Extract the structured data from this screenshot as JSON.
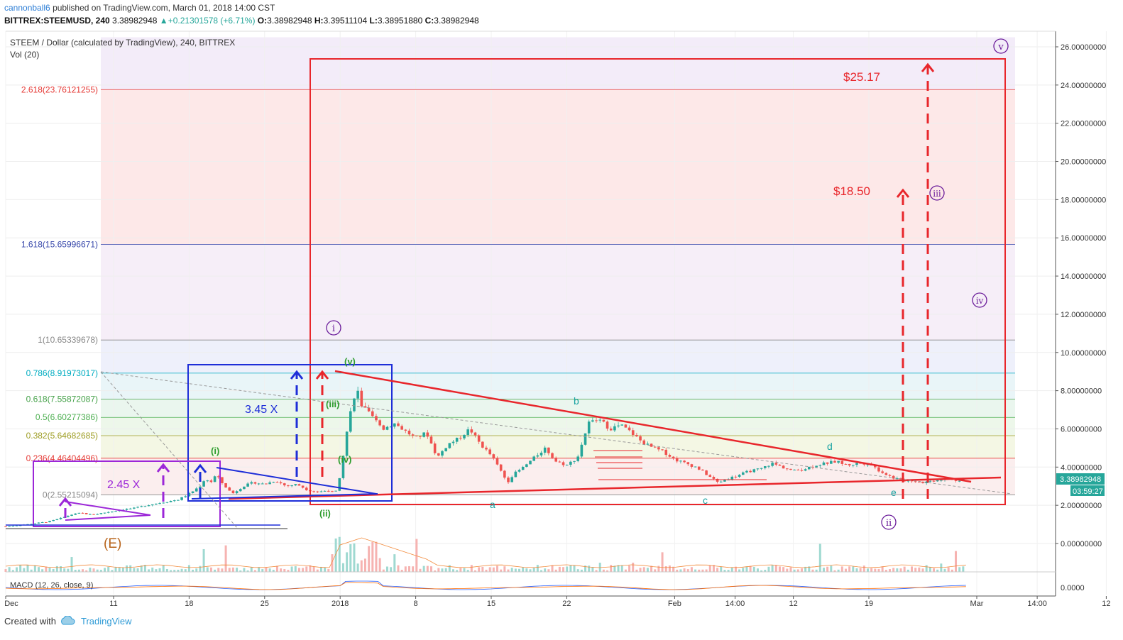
{
  "header": {
    "user": "cannonball6",
    "published": "published on TradingView.com, March 01, 2018 14:00 CST",
    "symbol": "BITTREX:STEEMUSD, 240",
    "last": "3.38982948",
    "change": "+0.21301578 (+6.71%)",
    "open_label": "O:",
    "open": "3.38982948",
    "high_label": "H:",
    "high": "3.39511104",
    "low_label": "L:",
    "low": "3.38951880",
    "close_label": "C:",
    "close": "3.38982948"
  },
  "chart_data": {
    "type": "candlestick",
    "title": "STEEM / Dollar (calculated by TradingView), 240, BITTREX",
    "volume_label": "Vol (20)",
    "macd_label": "MACD (12, 26, close, 9)",
    "macd_tick": "0.0000",
    "ylim": [
      -1.2,
      26.8
    ],
    "y_ticks": [
      "26.00000000",
      "24.00000000",
      "22.00000000",
      "20.00000000",
      "18.00000000",
      "16.00000000",
      "14.00000000",
      "12.00000000",
      "10.00000000",
      "8.00000000",
      "6.00000000",
      "4.00000000",
      "2.00000000",
      "0.00000000"
    ],
    "y_tick_values": [
      26,
      24,
      22,
      20,
      18,
      16,
      14,
      12,
      10,
      8,
      6,
      4,
      2,
      0
    ],
    "x_labels": [
      {
        "text": "Dec",
        "day": 0
      },
      {
        "text": "11",
        "day": 10
      },
      {
        "text": "18",
        "day": 17
      },
      {
        "text": "25",
        "day": 24
      },
      {
        "text": "2018",
        "day": 31
      },
      {
        "text": "8",
        "day": 38
      },
      {
        "text": "15",
        "day": 45
      },
      {
        "text": "22",
        "day": 52
      },
      {
        "text": "Feb",
        "day": 62
      },
      {
        "text": "14:00",
        "day": 67.6
      },
      {
        "text": "12",
        "day": 73
      },
      {
        "text": "19",
        "day": 80
      },
      {
        "text": "Mar",
        "day": 90
      },
      {
        "text": "14:00",
        "day": 95.6
      },
      {
        "text": "12",
        "day": 102
      }
    ],
    "last_price_tag": "3.38982948",
    "countdown_tag": "03:59:27",
    "price_path": [
      [
        0,
        0.9
      ],
      [
        2,
        1.0
      ],
      [
        4,
        1.15
      ],
      [
        5,
        1.3
      ],
      [
        6,
        1.5
      ],
      [
        7,
        1.6
      ],
      [
        8,
        1.5
      ],
      [
        9,
        1.6
      ],
      [
        10,
        1.7
      ],
      [
        11,
        1.8
      ],
      [
        12,
        1.85
      ],
      [
        13,
        2.0
      ],
      [
        14,
        2.1
      ],
      [
        15,
        2.2
      ],
      [
        16,
        2.3
      ],
      [
        17,
        2.6
      ],
      [
        18,
        3.0
      ],
      [
        18.5,
        3.4
      ],
      [
        19,
        3.2
      ],
      [
        19.5,
        3.6
      ],
      [
        20,
        3.2
      ],
      [
        20.5,
        2.9
      ],
      [
        21,
        2.6
      ],
      [
        22,
        3.0
      ],
      [
        23,
        3.2
      ],
      [
        24,
        3.1
      ],
      [
        25,
        3.3
      ],
      [
        26,
        3.0
      ],
      [
        27,
        3.1
      ],
      [
        28,
        2.8
      ],
      [
        29,
        2.7
      ],
      [
        30,
        2.8
      ],
      [
        30.5,
        2.6
      ],
      [
        31,
        3.6
      ],
      [
        31.5,
        5.5
      ],
      [
        32,
        7.0
      ],
      [
        32.5,
        8.2
      ],
      [
        33,
        7.2
      ],
      [
        34,
        6.6
      ],
      [
        35,
        6.0
      ],
      [
        36,
        6.3
      ],
      [
        37,
        5.9
      ],
      [
        38,
        5.5
      ],
      [
        39,
        5.8
      ],
      [
        40,
        4.5
      ],
      [
        41,
        5.2
      ],
      [
        42,
        5.5
      ],
      [
        43,
        6.0
      ],
      [
        44,
        5.2
      ],
      [
        45,
        4.6
      ],
      [
        46,
        3.7
      ],
      [
        46.5,
        3.2
      ],
      [
        47,
        3.6
      ],
      [
        48,
        4.0
      ],
      [
        49,
        4.5
      ],
      [
        50,
        5.0
      ],
      [
        51,
        4.3
      ],
      [
        52,
        4.1
      ],
      [
        53,
        4.5
      ],
      [
        54,
        6.3
      ],
      [
        55,
        6.5
      ],
      [
        56,
        6.0
      ],
      [
        57,
        6.2
      ],
      [
        58,
        5.8
      ],
      [
        59,
        5.3
      ],
      [
        60,
        5.0
      ],
      [
        61,
        4.8
      ],
      [
        62,
        4.4
      ],
      [
        63,
        4.2
      ],
      [
        64,
        4.0
      ],
      [
        65,
        3.6
      ],
      [
        66,
        3.2
      ],
      [
        67,
        3.4
      ],
      [
        68,
        3.6
      ],
      [
        69,
        3.8
      ],
      [
        70,
        3.9
      ],
      [
        71,
        4.2
      ],
      [
        72,
        4.0
      ],
      [
        73,
        3.8
      ],
      [
        74,
        3.9
      ],
      [
        75,
        4.1
      ],
      [
        76,
        4.2
      ],
      [
        77,
        4.3
      ],
      [
        78,
        4.1
      ],
      [
        79,
        4.2
      ],
      [
        80,
        4.2
      ],
      [
        81,
        3.8
      ],
      [
        82,
        3.5
      ],
      [
        83,
        3.3
      ],
      [
        84,
        3.3
      ],
      [
        85,
        3.2
      ],
      [
        86,
        3.3
      ],
      [
        87,
        3.4
      ],
      [
        88,
        3.3
      ],
      [
        89,
        3.39
      ]
    ],
    "fib_levels": [
      {
        "label": "2.618(23.76121255)",
        "value": 23.76121255,
        "color": "#e53935"
      },
      {
        "label": "1.618(15.65996671)",
        "value": 15.65996671,
        "color": "#3949ab"
      },
      {
        "label": "1(10.65339678)",
        "value": 10.65339678,
        "color": "#888888"
      },
      {
        "label": "0.786(8.91973017)",
        "value": 8.91973017,
        "color": "#00acc1"
      },
      {
        "label": "0.618(7.55872087)",
        "value": 7.55872087,
        "color": "#43a047"
      },
      {
        "label": "0.5(6.60277386)",
        "value": 6.60277386,
        "color": "#4caf50"
      },
      {
        "label": "0.382(5.64682685)",
        "value": 5.64682685,
        "color": "#9e9d24"
      },
      {
        "label": "0.236(4.46404496)",
        "value": 4.46404496,
        "color": "#e53935"
      },
      {
        "label": "0(2.55215094)",
        "value": 2.55215094,
        "color": "#888888"
      }
    ],
    "annotations": {
      "target_high": "$25.17",
      "target_mid": "$18.50",
      "mult_blue": "3.45 X",
      "mult_purple": "2.45 X",
      "wave_E": "(E)",
      "waves_green": [
        "(i)",
        "(ii)",
        "(iii)",
        "(iv)",
        "(v)"
      ],
      "waves_teal": [
        "a",
        "b",
        "c",
        "d",
        "e"
      ],
      "waves_circle": [
        "i",
        "ii",
        "iii",
        "iv",
        "v"
      ]
    }
  },
  "footer": {
    "created_with": "Created with",
    "brand": "TradingView"
  },
  "colors": {
    "up": "#26a69a",
    "down": "#ef5350",
    "red_box": "#e8262b",
    "blue_box": "#1e2ed8",
    "purple_box": "#9c27d8",
    "wave_purple": "#6a1b9a"
  }
}
